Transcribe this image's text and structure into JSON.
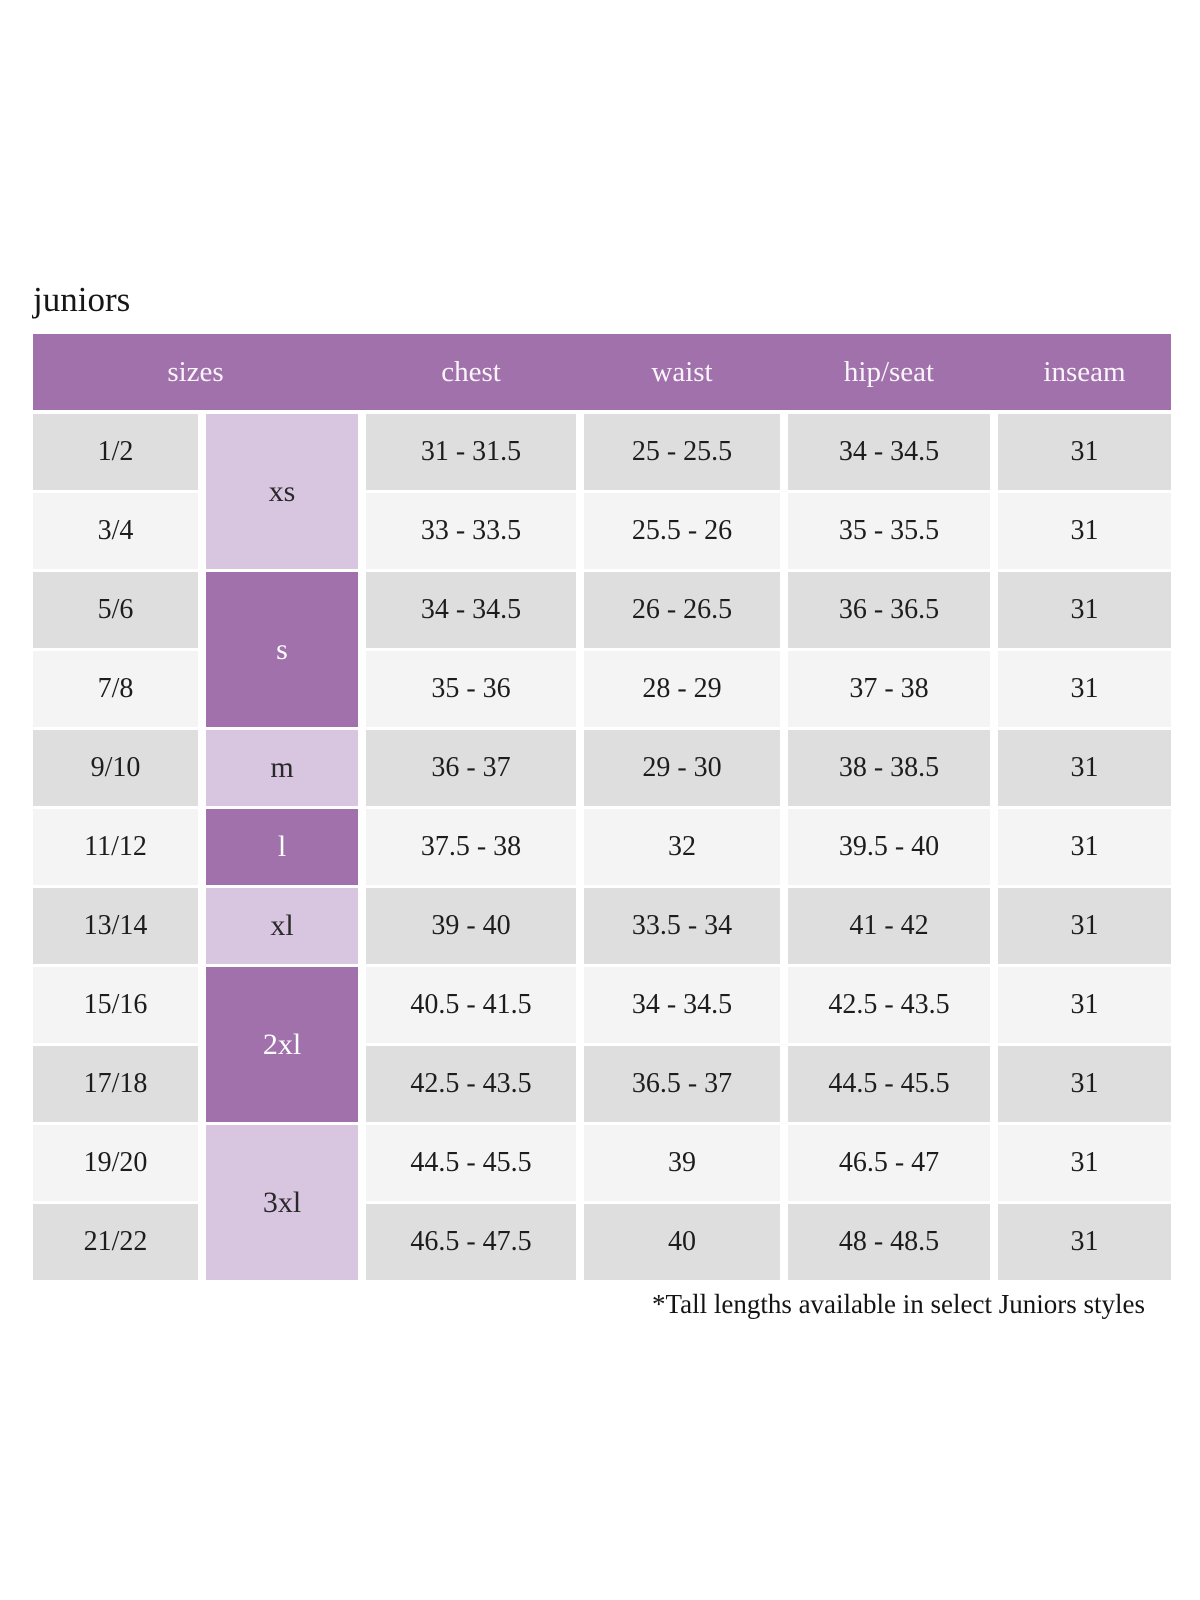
{
  "title": "juniors",
  "footnote": "*Tall lengths available in select Juniors styles",
  "colors": {
    "header_purple": "#a071ab",
    "group_dark_purple": "#a071ab",
    "group_light_purple": "#d8c6e0",
    "row_gray": "#dedede",
    "row_offwhite": "#f4f4f4",
    "header_text": "#f9f5fa",
    "cell_text": "#1d1d1d"
  },
  "chart_data": {
    "type": "table",
    "title": "juniors",
    "columns": [
      "sizes",
      "chest",
      "waist",
      "hip/seat",
      "inseam"
    ],
    "size_groups": [
      {
        "label": "xs",
        "sizes": [
          "1/2",
          "3/4"
        ],
        "shade": "light"
      },
      {
        "label": "s",
        "sizes": [
          "5/6",
          "7/8"
        ],
        "shade": "dark"
      },
      {
        "label": "m",
        "sizes": [
          "9/10"
        ],
        "shade": "light"
      },
      {
        "label": "l",
        "sizes": [
          "11/12"
        ],
        "shade": "dark"
      },
      {
        "label": "xl",
        "sizes": [
          "13/14"
        ],
        "shade": "light"
      },
      {
        "label": "2xl",
        "sizes": [
          "15/16",
          "17/18"
        ],
        "shade": "dark"
      },
      {
        "label": "3xl",
        "sizes": [
          "19/20",
          "21/22"
        ],
        "shade": "light"
      }
    ],
    "rows": [
      {
        "size": "1/2",
        "chest": "31 - 31.5",
        "waist": "25 - 25.5",
        "hip_seat": "34 - 34.5",
        "inseam": "31"
      },
      {
        "size": "3/4",
        "chest": "33 - 33.5",
        "waist": "25.5 - 26",
        "hip_seat": "35 - 35.5",
        "inseam": "31"
      },
      {
        "size": "5/6",
        "chest": "34 - 34.5",
        "waist": "26 - 26.5",
        "hip_seat": "36 - 36.5",
        "inseam": "31"
      },
      {
        "size": "7/8",
        "chest": "35 - 36",
        "waist": "28 - 29",
        "hip_seat": "37 - 38",
        "inseam": "31"
      },
      {
        "size": "9/10",
        "chest": "36 - 37",
        "waist": "29 - 30",
        "hip_seat": "38 - 38.5",
        "inseam": "31"
      },
      {
        "size": "11/12",
        "chest": "37.5 - 38",
        "waist": "32",
        "hip_seat": "39.5 - 40",
        "inseam": "31"
      },
      {
        "size": "13/14",
        "chest": "39 - 40",
        "waist": "33.5 - 34",
        "hip_seat": "41 - 42",
        "inseam": "31"
      },
      {
        "size": "15/16",
        "chest": "40.5 - 41.5",
        "waist": "34 - 34.5",
        "hip_seat": "42.5 - 43.5",
        "inseam": "31"
      },
      {
        "size": "17/18",
        "chest": "42.5 - 43.5",
        "waist": "36.5 - 37",
        "hip_seat": "44.5 - 45.5",
        "inseam": "31"
      },
      {
        "size": "19/20",
        "chest": "44.5 - 45.5",
        "waist": "39",
        "hip_seat": "46.5 - 47",
        "inseam": "31"
      },
      {
        "size": "21/22",
        "chest": "46.5 - 47.5",
        "waist": "40",
        "hip_seat": "48 - 48.5",
        "inseam": "31"
      }
    ]
  }
}
